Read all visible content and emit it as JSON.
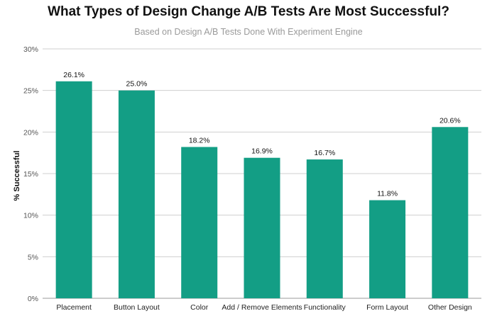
{
  "chart_data": {
    "type": "bar",
    "title": "What Types of Design Change A/B Tests Are Most Successful?",
    "subtitle": "Based on Design A/B Tests Done With Experiment Engine",
    "xlabel": "",
    "ylabel": "% Successful",
    "ylim": [
      0,
      30
    ],
    "yticks": [
      "0%",
      "5%",
      "10%",
      "15%",
      "20%",
      "25%",
      "30%"
    ],
    "grid": true,
    "bar_color": "#139e85",
    "categories": [
      "Placement",
      "Button Layout",
      "Color",
      "Add / Remove Elements",
      "Functionality",
      "Form Layout",
      "Other Design"
    ],
    "values": [
      26.1,
      25.0,
      18.2,
      16.9,
      16.7,
      11.8,
      20.6
    ],
    "value_labels": [
      "26.1%",
      "25.0%",
      "18.2%",
      "16.9%",
      "16.7%",
      "11.8%",
      "20.6%"
    ]
  }
}
